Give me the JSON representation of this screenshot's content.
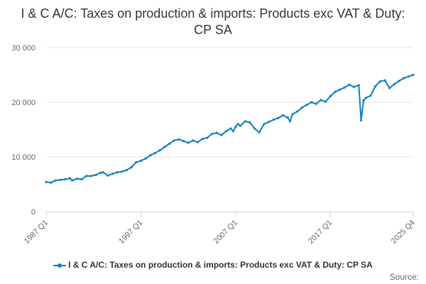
{
  "chart_data": {
    "type": "line",
    "title": "I & C A/C: Taxes on production & imports: Products exc VAT & Duty: CP SA",
    "xlabel": "",
    "ylabel": "",
    "ylim": [
      0,
      30000
    ],
    "yticks": [
      0,
      10000,
      20000,
      30000
    ],
    "ytick_labels": [
      "0",
      "10 000",
      "20 000",
      "30 000"
    ],
    "xtick_labels": [
      "1987 Q1",
      "1997 Q1",
      "2007 Q1",
      "2017 Q1",
      "2025 Q4"
    ],
    "start_period": "1987 Q1",
    "end_period": "2025 Q4",
    "grid": true,
    "legend_position": "bottom",
    "series": [
      {
        "name": "I & C A/C: Taxes on production & imports: Products exc VAT & Duty: CP SA",
        "color": "#0e7fc0",
        "points": [
          [
            "1987 Q1",
            5400
          ],
          [
            "1987 Q3",
            5300
          ],
          [
            "1988 Q1",
            5700
          ],
          [
            "1988 Q3",
            5800
          ],
          [
            "1989 Q1",
            5900
          ],
          [
            "1989 Q3",
            6100
          ],
          [
            "1989 Q4",
            5700
          ],
          [
            "1990 Q2",
            6000
          ],
          [
            "1990 Q4",
            5900
          ],
          [
            "1991 Q2",
            6500
          ],
          [
            "1991 Q4",
            6500
          ],
          [
            "1992 Q2",
            6700
          ],
          [
            "1992 Q4",
            7100
          ],
          [
            "1993 Q1",
            7200
          ],
          [
            "1993 Q3",
            6600
          ],
          [
            "1994 Q1",
            6900
          ],
          [
            "1994 Q3",
            7200
          ],
          [
            "1995 Q1",
            7300
          ],
          [
            "1995 Q3",
            7600
          ],
          [
            "1996 Q1",
            8100
          ],
          [
            "1996 Q3",
            9000
          ],
          [
            "1997 Q1",
            9300
          ],
          [
            "1997 Q3",
            9700
          ],
          [
            "1998 Q1",
            10300
          ],
          [
            "1998 Q3",
            10700
          ],
          [
            "1999 Q1",
            11200
          ],
          [
            "1999 Q3",
            11800
          ],
          [
            "2000 Q1",
            12400
          ],
          [
            "2000 Q3",
            13000
          ],
          [
            "2001 Q1",
            13200
          ],
          [
            "2001 Q3",
            12900
          ],
          [
            "2002 Q1",
            12600
          ],
          [
            "2002 Q3",
            13000
          ],
          [
            "2003 Q1",
            12700
          ],
          [
            "2003 Q3",
            13300
          ],
          [
            "2004 Q1",
            13500
          ],
          [
            "2004 Q3",
            14200
          ],
          [
            "2005 Q1",
            14400
          ],
          [
            "2005 Q3",
            14000
          ],
          [
            "2006 Q1",
            14700
          ],
          [
            "2006 Q3",
            15200
          ],
          [
            "2006 Q4",
            14700
          ],
          [
            "2007 Q1",
            15500
          ],
          [
            "2007 Q2",
            16000
          ],
          [
            "2007 Q3",
            15700
          ],
          [
            "2008 Q1",
            16500
          ],
          [
            "2008 Q3",
            16300
          ],
          [
            "2009 Q1",
            15200
          ],
          [
            "2009 Q3",
            14500
          ],
          [
            "2010 Q1",
            16000
          ],
          [
            "2010 Q3",
            16400
          ],
          [
            "2011 Q1",
            16800
          ],
          [
            "2011 Q3",
            17100
          ],
          [
            "2012 Q1",
            17600
          ],
          [
            "2012 Q3",
            17200
          ],
          [
            "2012 Q4",
            16500
          ],
          [
            "2013 Q1",
            17800
          ],
          [
            "2013 Q3",
            18300
          ],
          [
            "2014 Q1",
            19000
          ],
          [
            "2014 Q3",
            19500
          ],
          [
            "2015 Q1",
            20000
          ],
          [
            "2015 Q3",
            19700
          ],
          [
            "2016 Q1",
            20400
          ],
          [
            "2016 Q3",
            20100
          ],
          [
            "2017 Q1",
            21100
          ],
          [
            "2017 Q3",
            21900
          ],
          [
            "2018 Q1",
            22300
          ],
          [
            "2018 Q3",
            22700
          ],
          [
            "2019 Q1",
            23200
          ],
          [
            "2019 Q3",
            22800
          ],
          [
            "2020 Q1",
            23100
          ],
          [
            "2020 Q2",
            16700
          ],
          [
            "2020 Q3",
            20300
          ],
          [
            "2020 Q4",
            20800
          ],
          [
            "2021 Q2",
            21200
          ],
          [
            "2021 Q4",
            22900
          ],
          [
            "2022 Q2",
            23800
          ],
          [
            "2022 Q4",
            24000
          ],
          [
            "2023 Q2",
            22600
          ],
          [
            "2023 Q4",
            23300
          ],
          [
            "2024 Q2",
            23900
          ],
          [
            "2024 Q4",
            24400
          ],
          [
            "2025 Q2",
            24700
          ],
          [
            "2025 Q4",
            25000
          ]
        ]
      }
    ]
  },
  "credit": "Source:"
}
